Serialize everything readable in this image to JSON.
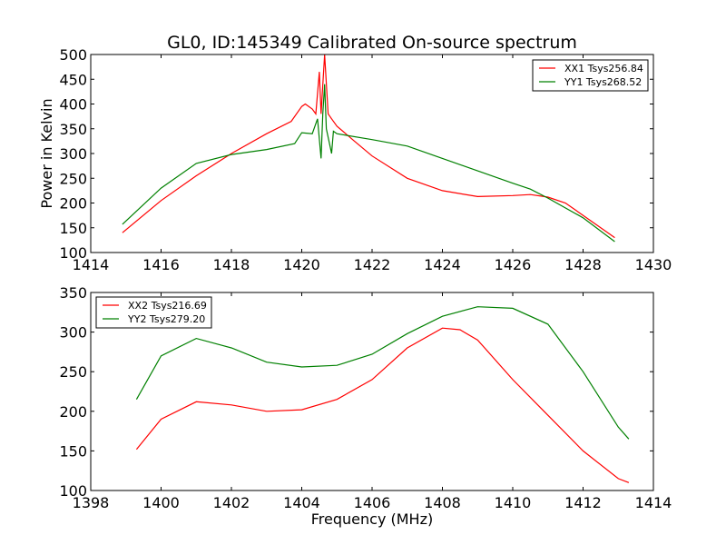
{
  "chart_data": [
    {
      "type": "line",
      "title": "GL0, ID:145349 Calibrated On-source spectrum",
      "xlabel": "",
      "ylabel": "Power in Kelvin",
      "xlim": [
        1414,
        1430
      ],
      "ylim": [
        100,
        500
      ],
      "xticks": [
        1414,
        1416,
        1418,
        1420,
        1422,
        1424,
        1426,
        1428,
        1430
      ],
      "yticks": [
        100,
        150,
        200,
        250,
        300,
        350,
        400,
        450,
        500
      ],
      "legend": "top-right",
      "series": [
        {
          "name": "XX1 Tsys256.84",
          "color": "#ff0000",
          "x": [
            1414.9,
            1416,
            1417,
            1418,
            1419,
            1419.7,
            1420,
            1420.1,
            1420.3,
            1420.4,
            1420.5,
            1420.55,
            1420.65,
            1420.75,
            1420.85,
            1421,
            1421.5,
            1422,
            1423,
            1424,
            1425,
            1426,
            1426.5,
            1427,
            1427.5,
            1428,
            1428.9
          ],
          "y": [
            140,
            205,
            255,
            300,
            340,
            365,
            395,
            400,
            390,
            380,
            465,
            380,
            500,
            380,
            370,
            355,
            325,
            295,
            250,
            225,
            213,
            215,
            217,
            212,
            200,
            175,
            130
          ]
        },
        {
          "name": "YY1 Tsys268.52",
          "color": "#008000",
          "x": [
            1414.9,
            1416,
            1417,
            1418,
            1419,
            1419.8,
            1420,
            1420.3,
            1420.45,
            1420.55,
            1420.6,
            1420.65,
            1420.7,
            1420.85,
            1420.9,
            1421,
            1422,
            1423,
            1424,
            1425,
            1426,
            1426.5,
            1427,
            1428,
            1428.9
          ],
          "y": [
            157,
            230,
            280,
            298,
            308,
            320,
            342,
            340,
            370,
            290,
            380,
            440,
            350,
            300,
            345,
            340,
            328,
            315,
            290,
            265,
            240,
            228,
            210,
            170,
            122
          ]
        }
      ]
    },
    {
      "type": "line",
      "title": "",
      "xlabel": "Frequency (MHz)",
      "ylabel": "",
      "xlim": [
        1398,
        1414
      ],
      "ylim": [
        100,
        350
      ],
      "xticks": [
        1398,
        1400,
        1402,
        1404,
        1406,
        1408,
        1410,
        1412,
        1414
      ],
      "yticks": [
        100,
        150,
        200,
        250,
        300,
        350
      ],
      "legend": "top-left",
      "series": [
        {
          "name": "XX2 Tsys216.69",
          "color": "#ff0000",
          "x": [
            1399.3,
            1400,
            1401,
            1402,
            1403,
            1404,
            1405,
            1406,
            1407,
            1408,
            1408.5,
            1409,
            1410,
            1411,
            1412,
            1413,
            1413.3
          ],
          "y": [
            152,
            190,
            212,
            208,
            200,
            202,
            215,
            240,
            280,
            305,
            303,
            290,
            240,
            195,
            150,
            115,
            110
          ]
        },
        {
          "name": "YY2 Tsys279.20",
          "color": "#008000",
          "x": [
            1399.3,
            1400,
            1401,
            1402,
            1403,
            1404,
            1405,
            1406,
            1407,
            1408,
            1409,
            1410,
            1411,
            1412,
            1413,
            1413.3
          ],
          "y": [
            215,
            270,
            292,
            280,
            262,
            256,
            258,
            272,
            298,
            320,
            332,
            330,
            310,
            250,
            180,
            165
          ]
        }
      ]
    }
  ]
}
